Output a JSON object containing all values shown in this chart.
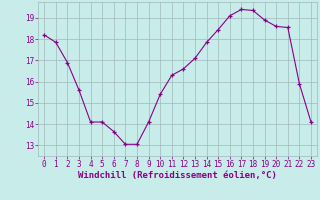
{
  "x": [
    0,
    1,
    2,
    3,
    4,
    5,
    6,
    7,
    8,
    9,
    10,
    11,
    12,
    13,
    14,
    15,
    16,
    17,
    18,
    19,
    20,
    21,
    22,
    23
  ],
  "y": [
    18.2,
    17.85,
    16.9,
    15.6,
    14.1,
    14.1,
    13.65,
    13.05,
    13.05,
    14.1,
    15.4,
    16.3,
    16.6,
    17.1,
    17.85,
    18.45,
    19.1,
    19.4,
    19.35,
    18.9,
    18.6,
    18.55,
    15.9,
    14.1
  ],
  "xlim": [
    -0.5,
    23.5
  ],
  "ylim": [
    12.5,
    19.75
  ],
  "yticks": [
    13,
    14,
    15,
    16,
    17,
    18,
    19
  ],
  "xticks": [
    0,
    1,
    2,
    3,
    4,
    5,
    6,
    7,
    8,
    9,
    10,
    11,
    12,
    13,
    14,
    15,
    16,
    17,
    18,
    19,
    20,
    21,
    22,
    23
  ],
  "xlabel": "Windchill (Refroidissement éolien,°C)",
  "line_color": "#880088",
  "marker": "+",
  "markersize": 3,
  "linewidth": 0.8,
  "bg_color": "#c8ecea",
  "grid_color": "#a0b8b8",
  "tick_color": "#880088",
  "label_color": "#880088",
  "tick_fontsize": 5.5,
  "label_fontsize": 6.5
}
